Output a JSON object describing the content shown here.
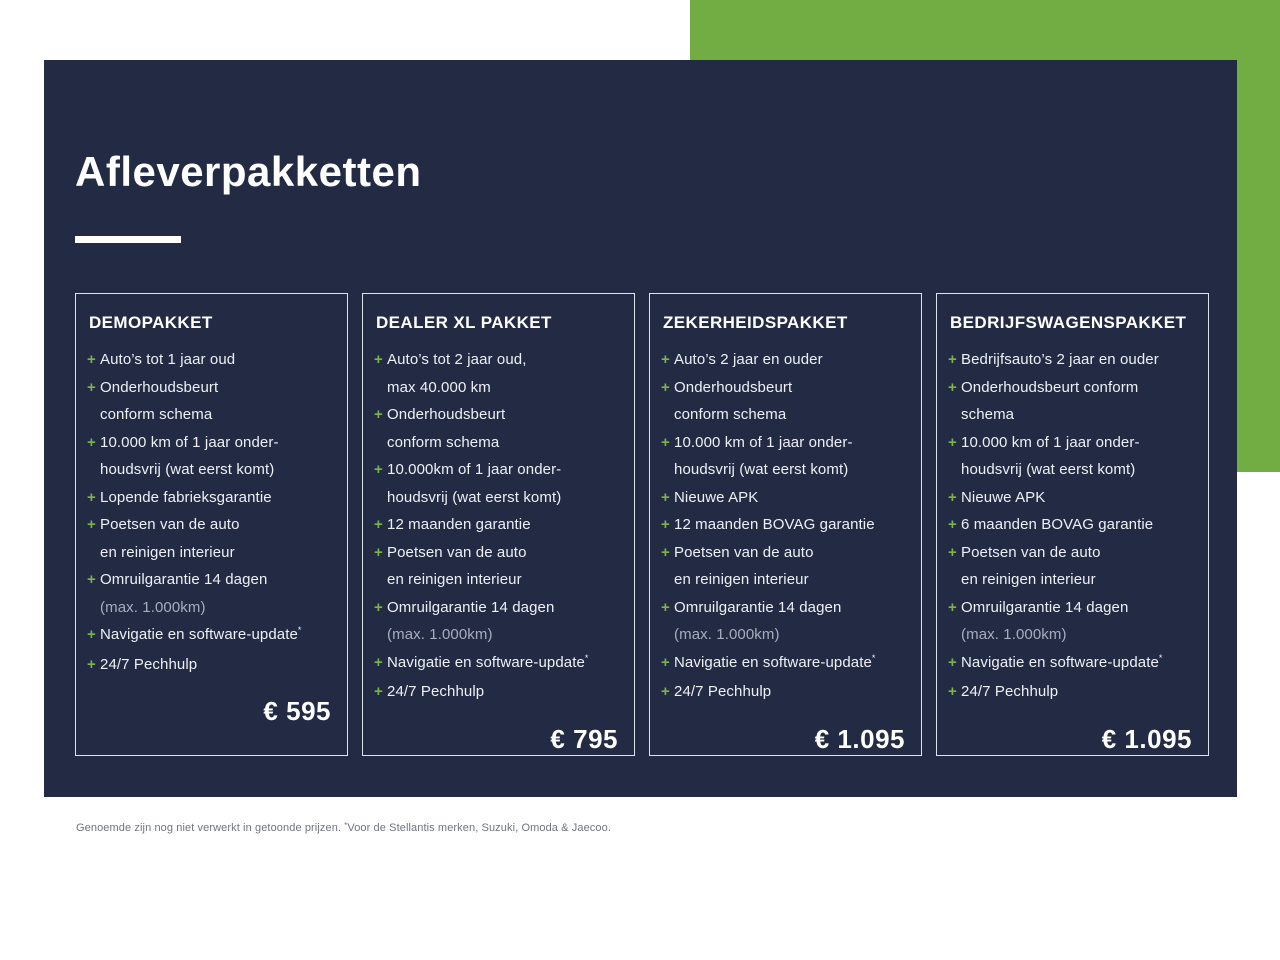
{
  "page": {
    "title": "Afleverpakketten",
    "colors": {
      "background": "#ffffff",
      "panel_navy": "#232b44",
      "accent_green": "#72ad43",
      "plus_green": "#7db44a",
      "card_border": "#dfe3ec",
      "text_main": "#eef0f6",
      "text_dim": "#a7adbd",
      "footnote_gray": "#6f7480"
    },
    "icons": {
      "feature_marker": "plus-icon",
      "marker_glyph": "+"
    }
  },
  "packages": [
    {
      "name": "DEMOPAKKET",
      "price": "€ 595",
      "features": [
        {
          "lines": [
            "Auto’s tot 1 jaar oud"
          ]
        },
        {
          "lines": [
            "Onderhoudsbeurt",
            "conform schema"
          ]
        },
        {
          "lines": [
            "10.000 km of 1 jaar onder-",
            "houdsvrij (wat eerst komt)"
          ]
        },
        {
          "lines": [
            "Lopende fabrieksgarantie"
          ]
        },
        {
          "lines": [
            "Poetsen van de auto",
            "en reinigen interieur"
          ]
        },
        {
          "lines": [
            "Omruilgarantie 14 dagen",
            {
              "t": "(max. 1.000km)",
              "dim": true
            }
          ]
        },
        {
          "lines": [
            {
              "t": "Navigatie en software-update",
              "sup": "*"
            }
          ]
        },
        {
          "lines": [
            "24/7 Pechhulp"
          ]
        }
      ]
    },
    {
      "name": "DEALER XL PAKKET",
      "price": "€ 795",
      "features": [
        {
          "lines": [
            "Auto’s tot 2 jaar oud,",
            "max 40.000 km"
          ]
        },
        {
          "lines": [
            "Onderhoudsbeurt",
            "conform schema"
          ]
        },
        {
          "lines": [
            "10.000km of 1 jaar onder-",
            "houdsvrij (wat eerst komt)"
          ]
        },
        {
          "lines": [
            "12 maanden garantie"
          ]
        },
        {
          "lines": [
            "Poetsen van de auto",
            "en reinigen interieur"
          ]
        },
        {
          "lines": [
            "Omruilgarantie 14 dagen",
            {
              "t": "(max. 1.000km)",
              "dim": true
            }
          ]
        },
        {
          "lines": [
            {
              "t": "Navigatie en software-update",
              "sup": "*"
            }
          ]
        },
        {
          "lines": [
            "24/7 Pechhulp"
          ]
        }
      ]
    },
    {
      "name": "ZEKERHEIDSPAKKET",
      "price": "€ 1.095",
      "features": [
        {
          "lines": [
            "Auto’s 2 jaar en ouder"
          ]
        },
        {
          "lines": [
            "Onderhoudsbeurt",
            "conform schema"
          ]
        },
        {
          "lines": [
            "10.000 km of 1 jaar onder-",
            "houdsvrij (wat eerst komt)"
          ]
        },
        {
          "lines": [
            "Nieuwe APK"
          ]
        },
        {
          "lines": [
            "12 maanden BOVAG garantie"
          ]
        },
        {
          "lines": [
            "Poetsen van de auto",
            "en reinigen interieur"
          ]
        },
        {
          "lines": [
            "Omruilgarantie 14 dagen",
            {
              "t": "(max. 1.000km)",
              "dim": true
            }
          ]
        },
        {
          "lines": [
            {
              "t": "Navigatie en software-update",
              "sup": "*"
            }
          ]
        },
        {
          "lines": [
            "24/7 Pechhulp"
          ]
        }
      ]
    },
    {
      "name": "BEDRIJFSWAGENSPAKKET",
      "price": "€ 1.095",
      "features": [
        {
          "lines": [
            "Bedrijfsauto’s 2 jaar en ouder"
          ]
        },
        {
          "lines": [
            "Onderhoudsbeurt conform",
            "schema"
          ]
        },
        {
          "lines": [
            "10.000 km of 1 jaar onder-",
            "houdsvrij (wat eerst komt)"
          ]
        },
        {
          "lines": [
            "Nieuwe APK"
          ]
        },
        {
          "lines": [
            "6 maanden BOVAG garantie"
          ]
        },
        {
          "lines": [
            "Poetsen van de auto",
            "en reinigen interieur"
          ]
        },
        {
          "lines": [
            "Omruilgarantie 14 dagen",
            {
              "t": "(max. 1.000km)",
              "dim": true
            }
          ]
        },
        {
          "lines": [
            {
              "t": "Navigatie en software-update",
              "sup": "*"
            }
          ]
        },
        {
          "lines": [
            "24/7 Pechhulp"
          ]
        }
      ]
    }
  ],
  "footnote": {
    "before": "Genoemde zijn nog niet verwerkt in getoonde prijzen. ",
    "sup": "*",
    "after": "Voor de Stellantis merken, Suzuki, Omoda & Jaecoo."
  }
}
